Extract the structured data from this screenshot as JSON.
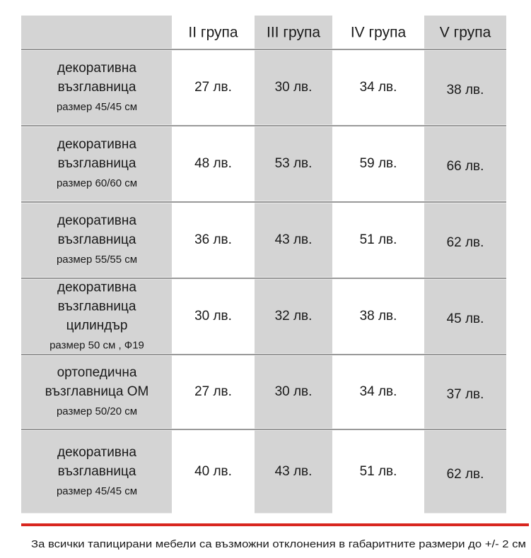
{
  "table": {
    "headers": [
      "II група",
      "III група",
      "IV група",
      "V група"
    ],
    "rows": [
      {
        "name": [
          "декоративна",
          "възглавница"
        ],
        "size": "размер 45/45 см",
        "prices": [
          "27 лв.",
          "30 лв.",
          "34 лв.",
          "38 лв."
        ]
      },
      {
        "name": [
          "декоративна",
          "възглавница"
        ],
        "size": "размер 60/60 см",
        "prices": [
          "48 лв.",
          "53 лв.",
          "59 лв.",
          "66 лв."
        ]
      },
      {
        "name": [
          "декоративна",
          "възглавница"
        ],
        "size": "размер 55/55 см",
        "prices": [
          "36 лв.",
          "43 лв.",
          "51 лв.",
          "62 лв."
        ]
      },
      {
        "name": [
          "декоративна",
          "възглавница",
          "цилиндър"
        ],
        "size": "размер 50 см , Ф19",
        "prices": [
          "30 лв.",
          "32 лв.",
          "38 лв.",
          "45 лв."
        ]
      },
      {
        "name": [
          "ортопедична",
          "възглавница ОМ"
        ],
        "size": "размер 50/20 см",
        "prices": [
          "27 лв.",
          "30 лв.",
          "34 лв.",
          "37 лв."
        ]
      },
      {
        "name": [
          "декоративна",
          "възглавница"
        ],
        "size": "размер 45/45 см",
        "prices": [
          "40 лв.",
          "43 лв.",
          "51 лв.",
          "62 лв."
        ]
      }
    ]
  },
  "footnote": "За всички тапицирани мебели са възможни отклонения в габаритните размери до +/- 2 см"
}
